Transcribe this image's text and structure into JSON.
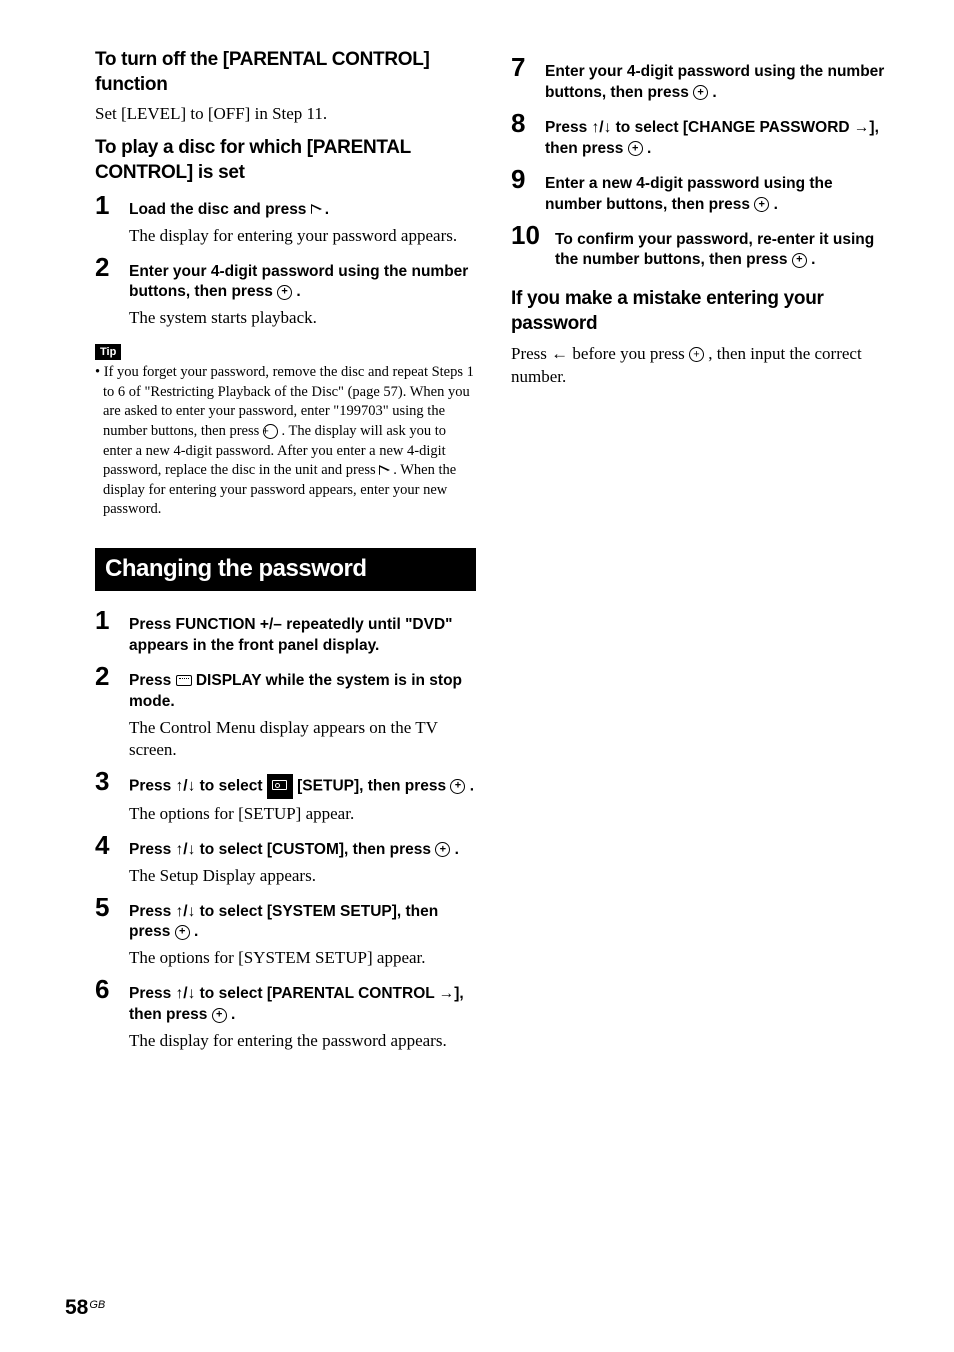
{
  "left": {
    "h1": "To turn off the [PARENTAL CONTROL] function",
    "p1": "Set [LEVEL] to [OFF] in Step 11.",
    "h2": "To play a disc for which [PARENTAL CONTROL] is set",
    "step1_bold": "Load the disc and press ",
    "step1_plain": "The display for entering your password appears.",
    "step2_bold_a": "Enter your 4-digit password using the number buttons, then press ",
    "step2_plain": "The system starts playback.",
    "tip_label": "Tip",
    "tip_body_a": "• If you forget your password, remove the disc and repeat Steps 1 to 6 of \"Restricting Playback of the Disc\" (page 57). When you are asked to enter your password, enter \"199703\" using the number buttons, then press ",
    "tip_body_b": " . The display will ask you to enter a new 4-digit password. After you enter a new 4-digit password, replace the disc in the unit and press ",
    "tip_body_c": ". When the display for entering your password appears, enter your new password.",
    "banner": "Changing the password",
    "cp1_bold": "Press FUNCTION +/– repeatedly until \"DVD\" appears in the front panel display.",
    "cp2_bold_a": "Press ",
    "cp2_bold_b": " DISPLAY while the system is in stop mode.",
    "cp2_plain": "The Control Menu display appears on the TV screen.",
    "cp3_bold_a": "Press ↑/↓ to select ",
    "cp3_bold_b": " [SETUP], then press ",
    "cp3_plain": "The options for [SETUP] appear.",
    "cp4_bold_a": "Press ↑/↓ to select [CUSTOM], then press ",
    "cp4_plain": "The Setup Display appears.",
    "cp5_bold_a": "Press ↑/↓ to select [SYSTEM SETUP], then press ",
    "cp5_plain": "The options for [SYSTEM SETUP] appear.",
    "cp6_bold_a": "Press ↑/↓ to select [PARENTAL CONTROL →], then press ",
    "cp6_plain": "The display for entering the password appears."
  },
  "right": {
    "s7": "Enter your 4-digit password using the number buttons, then press ",
    "s8": "Press ↑/↓ to select [CHANGE PASSWORD →], then press ",
    "s9": "Enter a new 4-digit password using the number buttons, then press ",
    "s10": "To confirm your password, re-enter it using the number buttons, then press ",
    "h3": "If you make a mistake entering your password",
    "p3_a": "Press ",
    "p3_b": " before you press ",
    "p3_c": " , then input the correct number."
  },
  "page": {
    "num": "58",
    "suffix": "GB"
  }
}
